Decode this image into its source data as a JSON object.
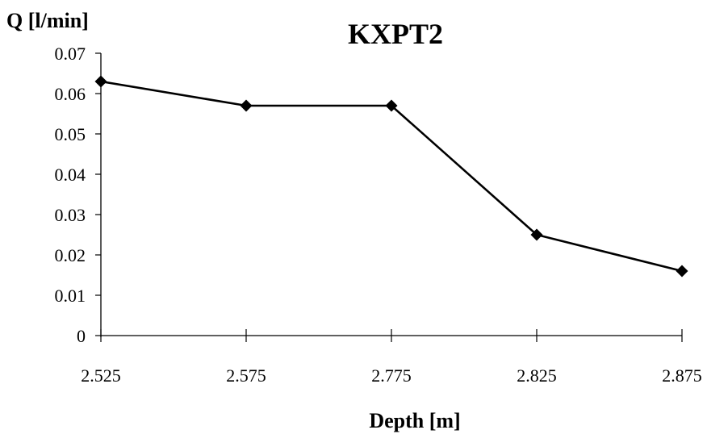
{
  "chart_data": {
    "type": "line",
    "title": "KXPT2",
    "xlabel": "Depth [m]",
    "ylabel": "Q [l/min]",
    "categories": [
      "2.525",
      "2.575",
      "2.775",
      "2.825",
      "2.875"
    ],
    "series": [
      {
        "values": [
          0.063,
          0.057,
          0.057,
          0.025,
          0.016
        ]
      }
    ],
    "yticks": [
      "0",
      "0.01",
      "0.02",
      "0.03",
      "0.04",
      "0.05",
      "0.06",
      "0.07"
    ],
    "ylim": [
      0,
      0.07
    ],
    "grid": false,
    "legend": "none",
    "marker": "diamond",
    "colors": {
      "line": "#000000",
      "marker": "#000000",
      "background": "#ffffff"
    }
  }
}
